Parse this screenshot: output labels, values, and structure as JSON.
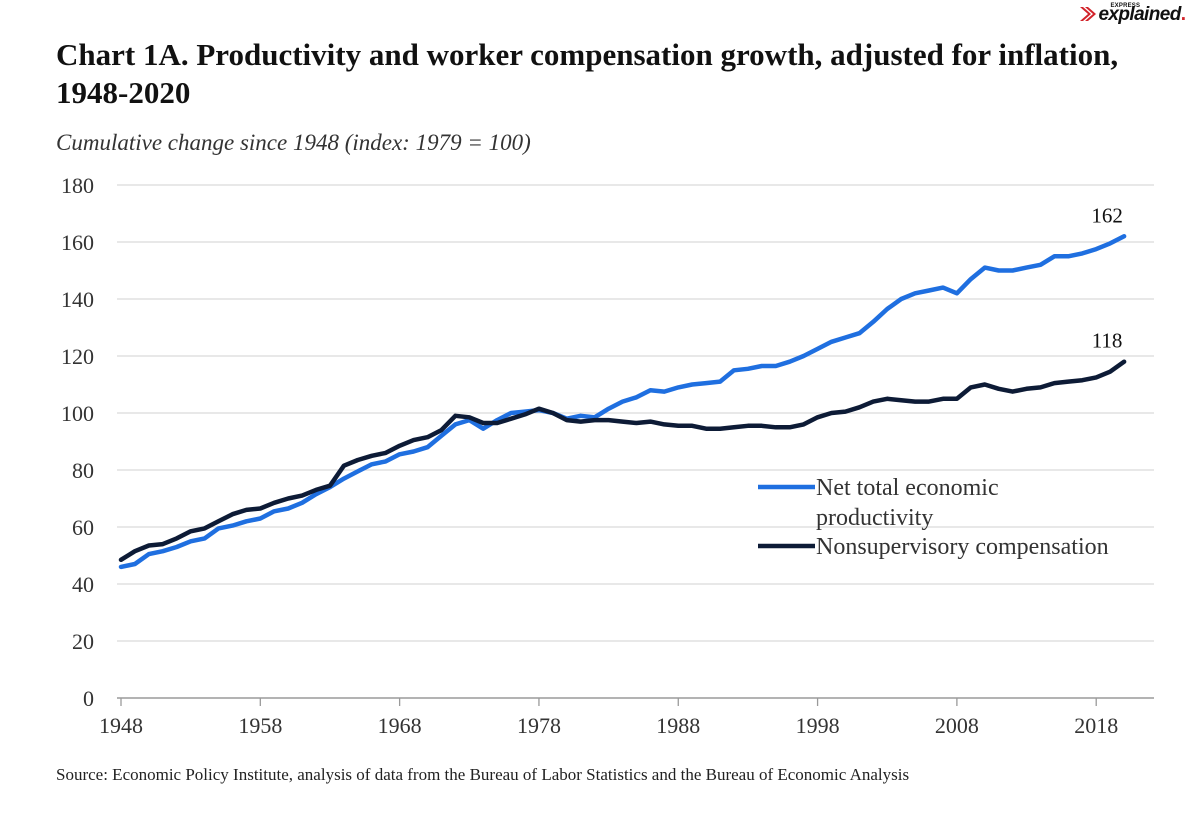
{
  "branding": {
    "top": "EXPRESS",
    "name": "explained",
    "dot": ".",
    "accent": "#d2232a"
  },
  "title": "Chart 1A. Productivity and worker compensation growth, adjusted for inflation, 1948-2020",
  "source": "Source: Economic Policy Institute, analysis of data from the Bureau of Labor Statistics and the Bureau of Economic Analysis",
  "chart_data": {
    "type": "line",
    "title": "Chart 1A. Productivity and worker compensation growth, adjusted for inflation, 1948-2020",
    "subtitle": "Cumulative change since 1948 (index: 1979 = 100)",
    "xlabel": "",
    "ylabel": "",
    "xlim": [
      1948,
      2021
    ],
    "ylim": [
      0,
      180
    ],
    "y_ticks": [
      0,
      20,
      40,
      60,
      80,
      100,
      120,
      140,
      160,
      180
    ],
    "x_ticks": [
      1948,
      1958,
      1968,
      1978,
      1988,
      1998,
      2008,
      2018
    ],
    "grid": true,
    "legend": {
      "position": "center-right"
    },
    "x": [
      1948,
      1949,
      1950,
      1951,
      1952,
      1953,
      1954,
      1955,
      1956,
      1957,
      1958,
      1959,
      1960,
      1961,
      1962,
      1963,
      1964,
      1965,
      1966,
      1967,
      1968,
      1969,
      1970,
      1971,
      1972,
      1973,
      1974,
      1975,
      1976,
      1977,
      1978,
      1979,
      1980,
      1981,
      1982,
      1983,
      1984,
      1985,
      1986,
      1987,
      1988,
      1989,
      1990,
      1991,
      1992,
      1993,
      1994,
      1995,
      1996,
      1997,
      1998,
      1999,
      2000,
      2001,
      2002,
      2003,
      2004,
      2005,
      2006,
      2007,
      2008,
      2009,
      2010,
      2011,
      2012,
      2013,
      2014,
      2015,
      2016,
      2017,
      2018,
      2019,
      2020
    ],
    "series": [
      {
        "name": "Net total economic productivity",
        "color": "#1f6fe0",
        "end_label": "162",
        "values": [
          46,
          47,
          50.5,
          51.5,
          53,
          55,
          56,
          59.5,
          60.5,
          62,
          63,
          65.5,
          66.5,
          68.5,
          71.5,
          74,
          77,
          79.5,
          82,
          83,
          85.5,
          86.5,
          88,
          92,
          96,
          97.5,
          94.5,
          97.5,
          100,
          100.5,
          101,
          100,
          98,
          99,
          98.5,
          101.5,
          104,
          105.5,
          108,
          107.5,
          109,
          110,
          110.5,
          111,
          115,
          115.5,
          116.5,
          116.5,
          118,
          120,
          122.5,
          125,
          126.5,
          128,
          132,
          136.5,
          140,
          142,
          143,
          144,
          142,
          147,
          151,
          150,
          150,
          151,
          152,
          155,
          155,
          156,
          157.5,
          159.5,
          162
        ]
      },
      {
        "name": "Nonsupervisory compensation",
        "color": "#0d1b36",
        "end_label": "118",
        "values": [
          48.5,
          51.5,
          53.5,
          54,
          56,
          58.5,
          59.5,
          62,
          64.5,
          66,
          66.5,
          68.5,
          70,
          71,
          73,
          74.5,
          81.5,
          83.5,
          85,
          86,
          88.5,
          90.5,
          91.5,
          94,
          99,
          98.5,
          96.5,
          96.5,
          98,
          99.5,
          101.5,
          100,
          97.5,
          97,
          97.5,
          97.5,
          97,
          96.5,
          97,
          96,
          95.5,
          95.5,
          94.5,
          94.5,
          95,
          95.5,
          95.5,
          95,
          95,
          96,
          98.5,
          100,
          100.5,
          102,
          104,
          105,
          104.5,
          104,
          104,
          105,
          105,
          109,
          110,
          108.5,
          107.5,
          108.5,
          109,
          110.5,
          111,
          111.5,
          112.5,
          114.5,
          118
        ]
      }
    ]
  }
}
